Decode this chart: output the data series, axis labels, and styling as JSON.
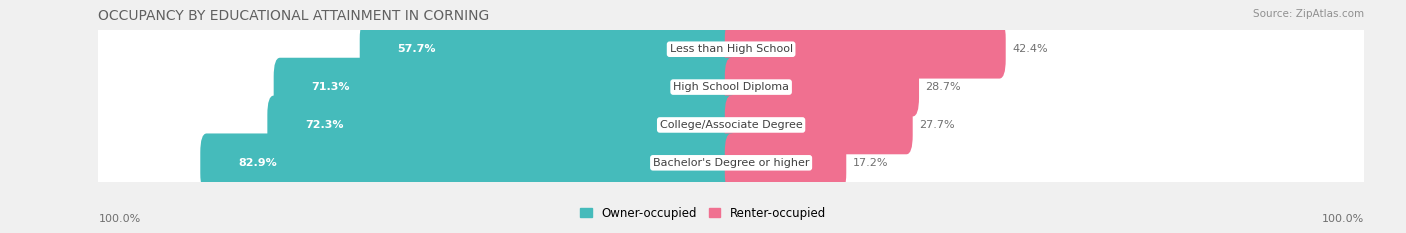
{
  "title": "OCCUPANCY BY EDUCATIONAL ATTAINMENT IN CORNING",
  "source": "Source: ZipAtlas.com",
  "categories": [
    "Less than High School",
    "High School Diploma",
    "College/Associate Degree",
    "Bachelor's Degree or higher"
  ],
  "owner_pct": [
    57.7,
    71.3,
    72.3,
    82.9
  ],
  "renter_pct": [
    42.4,
    28.7,
    27.7,
    17.2
  ],
  "owner_color": "#45BBBB",
  "renter_color": "#F07090",
  "row_bg_color": "#E8E8E8",
  "bg_color": "#F0F0F0",
  "title_color": "#606060",
  "source_color": "#909090",
  "pct_color_inside": "#FFFFFF",
  "pct_color_outside": "#707070",
  "cat_label_color": "#404040",
  "title_fontsize": 10,
  "label_fontsize": 8,
  "tick_fontsize": 8,
  "legend_fontsize": 8.5,
  "axis_label_left": "100.0%",
  "axis_label_right": "100.0%"
}
